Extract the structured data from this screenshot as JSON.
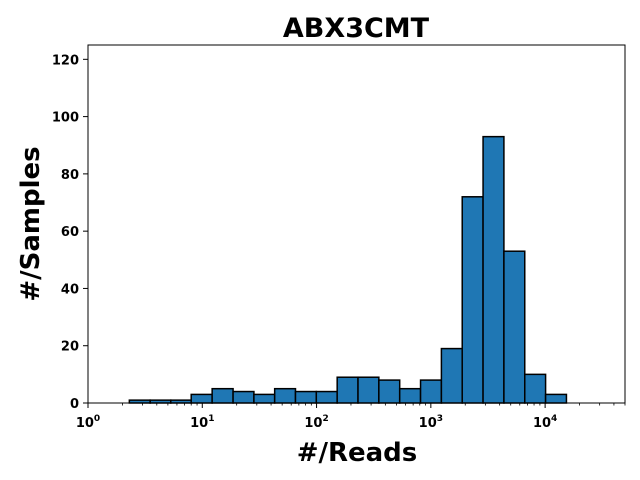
{
  "chart_data": {
    "type": "bar",
    "title": "ABX3CMT",
    "xlabel": "#/Reads",
    "ylabel": "#/Samples",
    "x_scale": "log",
    "xlim": [
      1,
      50000
    ],
    "ylim": [
      0,
      125
    ],
    "grid": false,
    "bar_color": "#1f77b4",
    "edge_color": "#000000",
    "x_ticks": [
      {
        "value": 1,
        "base": "10",
        "exp": "0"
      },
      {
        "value": 10,
        "base": "10",
        "exp": "1"
      },
      {
        "value": 100,
        "base": "10",
        "exp": "2"
      },
      {
        "value": 1000,
        "base": "10",
        "exp": "3"
      },
      {
        "value": 10000,
        "base": "10",
        "exp": "4"
      }
    ],
    "y_ticks": [
      0,
      20,
      40,
      60,
      80,
      100,
      120
    ],
    "bins": [
      {
        "x0": 2.3,
        "x1": 3.5,
        "value": 1
      },
      {
        "x0": 3.5,
        "x1": 5.3,
        "value": 1
      },
      {
        "x0": 5.3,
        "x1": 8.0,
        "value": 1
      },
      {
        "x0": 8.0,
        "x1": 12.2,
        "value": 3
      },
      {
        "x0": 12.2,
        "x1": 18.6,
        "value": 5
      },
      {
        "x0": 18.6,
        "x1": 28.3,
        "value": 4
      },
      {
        "x0": 28.3,
        "x1": 43.0,
        "value": 3
      },
      {
        "x0": 43.0,
        "x1": 65.4,
        "value": 5
      },
      {
        "x0": 65.4,
        "x1": 99.5,
        "value": 4
      },
      {
        "x0": 99.5,
        "x1": 151.5,
        "value": 4
      },
      {
        "x0": 151.5,
        "x1": 230.5,
        "value": 9
      },
      {
        "x0": 230.5,
        "x1": 350.8,
        "value": 9
      },
      {
        "x0": 350.8,
        "x1": 534.0,
        "value": 8
      },
      {
        "x0": 534.0,
        "x1": 812.8,
        "value": 5
      },
      {
        "x0": 812.8,
        "x1": 1237.0,
        "value": 8
      },
      {
        "x0": 1237.0,
        "x1": 1882.0,
        "value": 19
      },
      {
        "x0": 1882.0,
        "x1": 2864.0,
        "value": 72
      },
      {
        "x0": 2864.0,
        "x1": 4359.0,
        "value": 93
      },
      {
        "x0": 4359.0,
        "x1": 6634.0,
        "value": 53
      },
      {
        "x0": 6634.0,
        "x1": 10095.0,
        "value": 10
      },
      {
        "x0": 10095.0,
        "x1": 15365.0,
        "value": 3
      }
    ]
  }
}
